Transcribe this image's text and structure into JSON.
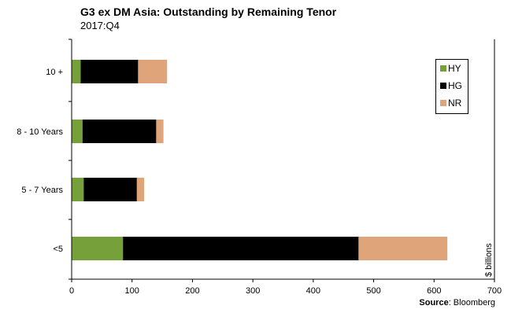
{
  "title": "G3 ex DM Asia: Outstanding by Remaining Tenor",
  "subtitle": "2017:Q4",
  "source_label": "Source",
  "source_value": ": Bloomberg",
  "colors": {
    "HY": "#76a03a",
    "HG": "#000000",
    "NR": "#e0a47a"
  },
  "chart_data": {
    "type": "bar",
    "orientation": "horizontal",
    "stacked": true,
    "categories": [
      "10 +",
      "8 - 10 Years",
      "5 - 7 Years",
      "<5"
    ],
    "series": [
      {
        "name": "HY",
        "values": [
          15,
          18,
          20,
          85
        ]
      },
      {
        "name": "HG",
        "values": [
          95,
          122,
          88,
          390
        ]
      },
      {
        "name": "NR",
        "values": [
          48,
          12,
          12,
          147
        ]
      }
    ],
    "xlim": [
      0,
      700
    ],
    "xticks": [
      0,
      100,
      200,
      300,
      400,
      500,
      600,
      700
    ],
    "ylabel_right": "$ billions",
    "legend_position": "top-right",
    "grid": false
  }
}
